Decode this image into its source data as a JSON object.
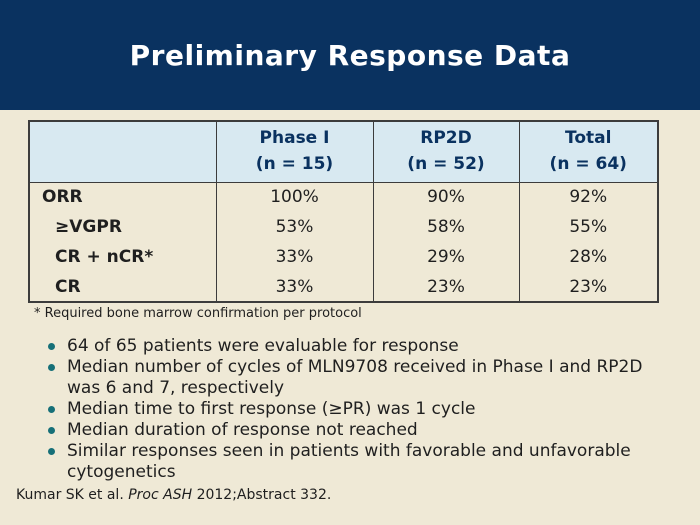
{
  "slide": {
    "title": "Preliminary Response Data",
    "colors": {
      "header_bg": "#0a3260",
      "title_text": "#ffffff",
      "slide_bg": "#efe9d6",
      "table_header_bg": "#d8e9f1",
      "header_text": "#0a3260",
      "table_border": "#3c3c3c",
      "bullet": "#167078",
      "body_text": "#1f1f1f"
    }
  },
  "table": {
    "columns": [
      {
        "label": "Phase I",
        "n": "(n = 15)"
      },
      {
        "label": "RP2D",
        "n": "(n = 52)"
      },
      {
        "label": "Total",
        "n": "(n = 64)"
      }
    ],
    "rows": [
      {
        "label": "ORR",
        "values": [
          "100%",
          "90%",
          "92%"
        ]
      },
      {
        "label": "≥VGPR",
        "values": [
          "53%",
          "58%",
          "55%"
        ]
      },
      {
        "label": "CR + nCR*",
        "values": [
          "33%",
          "29%",
          "28%"
        ]
      },
      {
        "label": "CR",
        "values": [
          "33%",
          "23%",
          "23%"
        ]
      }
    ],
    "footnote": "* Required bone marrow confirmation per protocol"
  },
  "bullets": [
    "64 of 65 patients were evaluable for response",
    "Median number of cycles of MLN9708 received in Phase I and RP2D was 6 and 7, respectively",
    "Median time to first response (≥PR) was 1 cycle",
    "Median duration of response not reached",
    "Similar responses seen in patients with favorable and unfavorable cytogenetics"
  ],
  "citation": {
    "prefix": "Kumar SK et al. ",
    "italic": "Proc ASH",
    "suffix": " 2012;Abstract 332."
  }
}
